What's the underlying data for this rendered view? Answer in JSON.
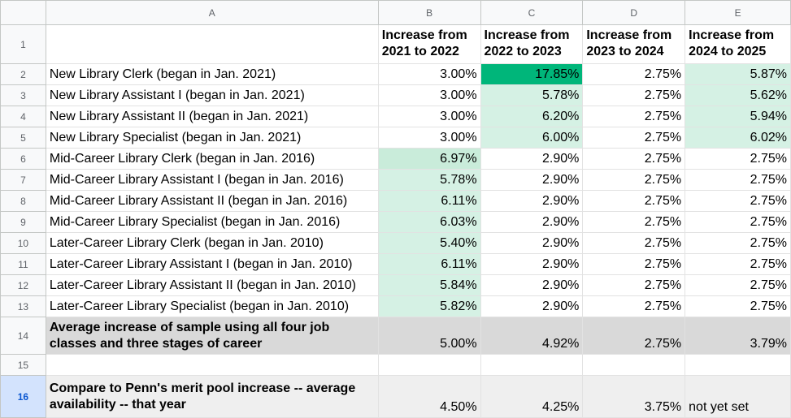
{
  "columns": [
    "A",
    "B",
    "C",
    "D",
    "E"
  ],
  "header_row": {
    "num": "1",
    "cells": [
      "",
      "Increase from 2021 to 2022",
      "Increase from 2022 to 2023",
      "Increase from 2023 to 2024",
      "Increase from 2024 to 2025"
    ]
  },
  "rows": [
    {
      "num": "2",
      "label": "New Library Clerk (began in Jan. 2021)",
      "values": [
        "3.00%",
        "17.85%",
        "2.75%",
        "5.87%"
      ]
    },
    {
      "num": "3",
      "label": "New Library Assistant I (began in Jan. 2021)",
      "values": [
        "3.00%",
        "5.78%",
        "2.75%",
        "5.62%"
      ]
    },
    {
      "num": "4",
      "label": "New Library Assistant II (began in Jan. 2021)",
      "values": [
        "3.00%",
        "6.20%",
        "2.75%",
        "5.94%"
      ]
    },
    {
      "num": "5",
      "label": "New Library Specialist (began in Jan. 2021)",
      "values": [
        "3.00%",
        "6.00%",
        "2.75%",
        "6.02%"
      ]
    },
    {
      "num": "6",
      "label": "Mid-Career Library Clerk (began in Jan. 2016)",
      "values": [
        "6.97%",
        "2.90%",
        "2.75%",
        "2.75%"
      ]
    },
    {
      "num": "7",
      "label": "Mid-Career Library Assistant I (began in Jan. 2016)",
      "values": [
        "5.78%",
        "2.90%",
        "2.75%",
        "2.75%"
      ]
    },
    {
      "num": "8",
      "label": "Mid-Career Library Assistant II (began in Jan. 2016)",
      "values": [
        "6.11%",
        "2.90%",
        "2.75%",
        "2.75%"
      ]
    },
    {
      "num": "9",
      "label": "Mid-Career Library Specialist (began in Jan. 2016)",
      "values": [
        "6.03%",
        "2.90%",
        "2.75%",
        "2.75%"
      ]
    },
    {
      "num": "10",
      "label": "Later-Career Library Clerk (began in Jan. 2010)",
      "values": [
        "5.40%",
        "2.90%",
        "2.75%",
        "2.75%"
      ]
    },
    {
      "num": "11",
      "label": "Later-Career Library Assistant I (began in Jan. 2010)",
      "values": [
        "6.11%",
        "2.90%",
        "2.75%",
        "2.75%"
      ]
    },
    {
      "num": "12",
      "label": "Later-Career Library Assistant II (began in Jan. 2010)",
      "values": [
        "5.84%",
        "2.90%",
        "2.75%",
        "2.75%"
      ]
    },
    {
      "num": "13",
      "label": "Later-Career Library Specialist (began in Jan. 2010)",
      "values": [
        "5.82%",
        "2.90%",
        "2.75%",
        "2.75%"
      ]
    }
  ],
  "average_row": {
    "num": "14",
    "label": "Average increase of sample using all four job classes and three stages of career",
    "values": [
      "5.00%",
      "4.92%",
      "2.75%",
      "3.79%"
    ]
  },
  "empty_row": {
    "num": "15"
  },
  "compare_row": {
    "num": "16",
    "label": "Compare to Penn's merit pool increase -- average availability -- that year",
    "values": [
      "4.50%",
      "4.25%",
      "3.75%",
      "not yet set"
    ]
  },
  "colors": {
    "light_green": "#d5f1e4",
    "mid_green": "#c9ecda",
    "strong_green": "#00b67a",
    "average_gray": "#d9d9d9",
    "compare_gray": "#efefef",
    "selected_row_header": "#d3e3fd"
  }
}
